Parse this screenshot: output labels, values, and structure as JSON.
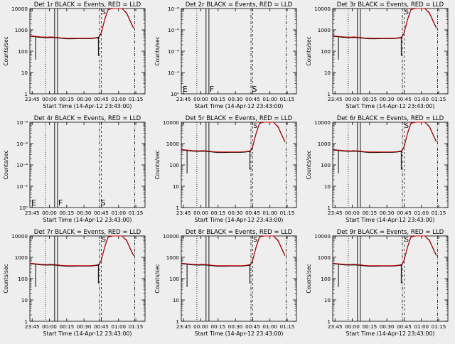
{
  "start_time_label": "Start Time (14-Apr-12 23:43:00)",
  "y_axis_label": "Counts/sec",
  "colors": {
    "events": "#000000",
    "lld": "#cc0000",
    "background": "#eeeeee"
  },
  "x_ticks": [
    "23:45",
    "00:00",
    "00:15",
    "00:30",
    "00:45",
    "01:00",
    "01:15"
  ],
  "chart_data": [
    {
      "type": "line",
      "title": "Det 1r BLACK = Events, RED = LLD",
      "kind": "rate",
      "ylim": [
        1,
        10000
      ],
      "y_ticks": [
        "1",
        "10",
        "100",
        "1000",
        "10000"
      ],
      "markers": []
    },
    {
      "type": "line",
      "title": "Det 2r BLACK = Events, RED = LLD",
      "kind": "empty",
      "y_ticks": [
        "10⁰",
        "10⁻²",
        "10⁻⁴",
        "10⁻⁶",
        "10⁻⁸"
      ],
      "markers": [
        "E",
        "F",
        "S"
      ]
    },
    {
      "type": "line",
      "title": "Det 3r BLACK = Events, RED = LLD",
      "kind": "rate",
      "ylim": [
        1,
        10000
      ],
      "y_ticks": [
        "1",
        "10",
        "100",
        "1000",
        "10000"
      ],
      "markers": []
    },
    {
      "type": "line",
      "title": "Det 4r BLACK = Events, RED = LLD",
      "kind": "empty",
      "y_ticks": [
        "10⁰",
        "10⁻²",
        "10⁻⁴",
        "10⁻⁶",
        "10⁻⁸"
      ],
      "markers": [
        "E",
        "F",
        "S"
      ]
    },
    {
      "type": "line",
      "title": "Det 5r BLACK = Events, RED = LLD",
      "kind": "rate",
      "ylim": [
        1,
        10000
      ],
      "y_ticks": [
        "1",
        "10",
        "100",
        "1000",
        "10000"
      ],
      "markers": []
    },
    {
      "type": "line",
      "title": "Det 6r BLACK = Events, RED = LLD",
      "kind": "rate",
      "ylim": [
        1,
        10000
      ],
      "y_ticks": [
        "1",
        "10",
        "100",
        "1000",
        "10000"
      ],
      "markers": []
    },
    {
      "type": "line",
      "title": "Det 7r BLACK = Events, RED = LLD",
      "kind": "rate",
      "ylim": [
        1,
        10000
      ],
      "y_ticks": [
        "1",
        "10",
        "100",
        "1000",
        "10000"
      ],
      "markers": []
    },
    {
      "type": "line",
      "title": "Det 8r BLACK = Events, RED = LLD",
      "kind": "rate",
      "ylim": [
        1,
        10000
      ],
      "y_ticks": [
        "1",
        "10",
        "100",
        "1000",
        "10000"
      ],
      "markers": []
    },
    {
      "type": "line",
      "title": "Det 9r BLACK = Events, RED = LLD",
      "kind": "rate",
      "ylim": [
        1,
        10000
      ],
      "y_ticks": [
        "1",
        "10",
        "100",
        "1000",
        "10000"
      ],
      "markers": []
    }
  ]
}
